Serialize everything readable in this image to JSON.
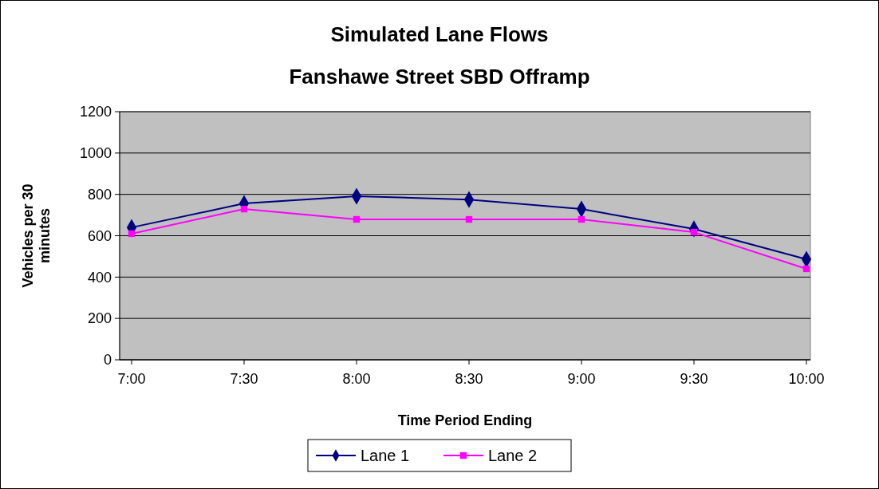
{
  "chart_data": {
    "type": "line",
    "title": "Simulated Lane Flows",
    "subtitle": "Fanshawe Street SBD Offramp",
    "xlabel": "Time Period Ending",
    "ylabel": "Vehicles per 30 minutes",
    "categories": [
      "7:00",
      "7:30",
      "8:00",
      "8:30",
      "9:00",
      "9:30",
      "10:00"
    ],
    "series": [
      {
        "name": "Lane 1",
        "color": "#000080",
        "marker": "diamond",
        "values": [
          640,
          756,
          791,
          775,
          729,
          633,
          486
        ]
      },
      {
        "name": "Lane 2",
        "color": "#ff00ff",
        "marker": "square",
        "values": [
          610,
          729,
          679,
          679,
          679,
          617,
          440
        ]
      }
    ],
    "ylim": [
      0,
      1200
    ],
    "yticks": [
      0,
      200,
      400,
      600,
      800,
      1000,
      1200
    ],
    "grid": "y",
    "legend": "bottom",
    "line_style": "solid"
  }
}
